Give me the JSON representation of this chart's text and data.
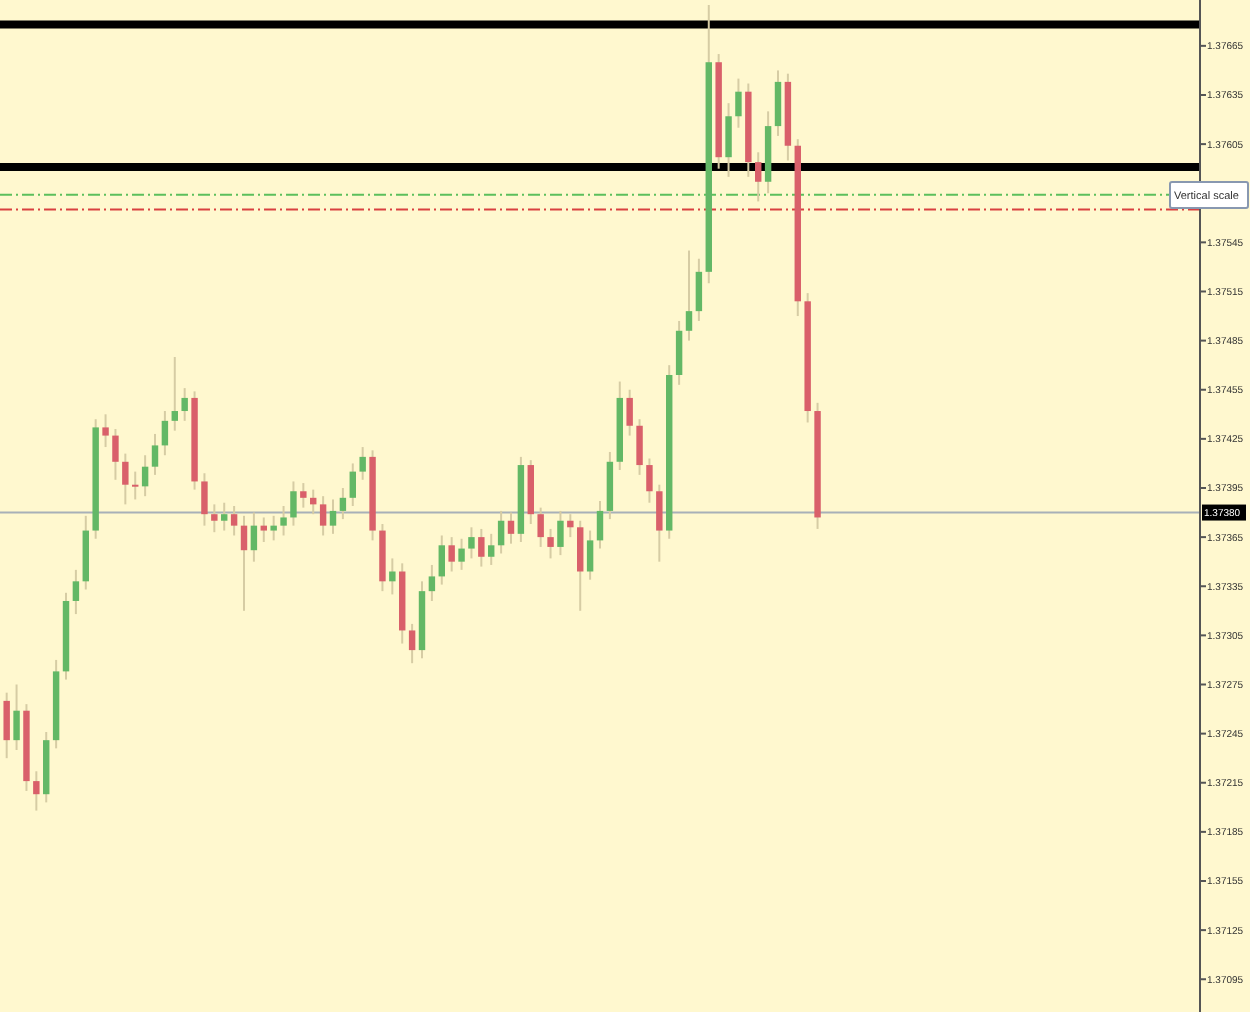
{
  "chart_data": {
    "type": "candlestick",
    "categories": [
      null,
      null,
      null,
      null,
      null,
      null,
      null,
      null,
      null,
      null,
      null,
      null,
      null,
      null,
      null,
      null,
      null,
      null,
      null,
      null,
      null,
      null,
      null,
      null,
      null,
      null,
      null,
      null,
      null,
      null,
      null,
      null,
      null,
      null,
      null,
      null,
      null,
      null,
      null,
      null,
      null,
      null,
      null,
      null,
      null,
      null,
      null,
      null,
      null,
      null,
      null,
      null,
      null,
      null,
      null,
      null,
      null,
      null,
      null,
      null,
      null,
      null,
      null,
      null,
      null,
      null,
      null,
      null,
      null,
      null,
      null,
      null,
      null,
      null,
      null,
      null,
      null,
      null,
      null,
      null,
      null,
      null,
      null,
      null,
      null,
      null,
      null,
      null,
      null,
      null,
      null,
      null,
      null,
      null,
      null,
      null,
      null,
      null,
      null,
      null,
      null,
      null,
      null,
      null,
      null,
      null,
      null,
      null,
      null,
      null,
      null,
      null,
      null,
      null,
      null,
      null,
      null,
      null,
      null,
      null,
      null
    ],
    "ohlc": [
      [
        1.37265,
        1.3727,
        1.3723,
        1.37241
      ],
      [
        1.37241,
        1.37275,
        1.37235,
        1.37259
      ],
      [
        1.37259,
        1.37263,
        1.3721,
        1.37216
      ],
      [
        1.37216,
        1.37222,
        1.37198,
        1.37208
      ],
      [
        1.37208,
        1.37246,
        1.37203,
        1.37241
      ],
      [
        1.37241,
        1.3729,
        1.37236,
        1.37283
      ],
      [
        1.37283,
        1.37331,
        1.37278,
        1.37326
      ],
      [
        1.37326,
        1.37345,
        1.37318,
        1.37338
      ],
      [
        1.37338,
        1.37378,
        1.37333,
        1.37369
      ],
      [
        1.37369,
        1.37437,
        1.37364,
        1.37432
      ],
      [
        1.37432,
        1.3744,
        1.3742,
        1.37427
      ],
      [
        1.37427,
        1.37431,
        1.374,
        1.37411
      ],
      [
        1.37411,
        1.37416,
        1.37385,
        1.37397
      ],
      [
        1.37397,
        1.37405,
        1.37388,
        1.37396
      ],
      [
        1.37396,
        1.37415,
        1.3739,
        1.37408
      ],
      [
        1.37408,
        1.37428,
        1.37403,
        1.37421
      ],
      [
        1.37421,
        1.37442,
        1.37415,
        1.37436
      ],
      [
        1.37436,
        1.37475,
        1.3743,
        1.37442
      ],
      [
        1.37442,
        1.37456,
        1.37436,
        1.3745
      ],
      [
        1.3745,
        1.37454,
        1.37394,
        1.37399
      ],
      [
        1.37399,
        1.37404,
        1.37372,
        1.37379
      ],
      [
        1.37379,
        1.37385,
        1.37368,
        1.37375
      ],
      [
        1.37375,
        1.37386,
        1.37369,
        1.37379
      ],
      [
        1.37379,
        1.37384,
        1.37366,
        1.37372
      ],
      [
        1.37372,
        1.37378,
        1.3732,
        1.37357
      ],
      [
        1.37357,
        1.3738,
        1.3735,
        1.37372
      ],
      [
        1.37372,
        1.37377,
        1.37362,
        1.37369
      ],
      [
        1.37369,
        1.37378,
        1.37363,
        1.37372
      ],
      [
        1.37372,
        1.37384,
        1.37366,
        1.37377
      ],
      [
        1.37377,
        1.37399,
        1.37372,
        1.37393
      ],
      [
        1.37393,
        1.37398,
        1.37383,
        1.37389
      ],
      [
        1.37389,
        1.37394,
        1.37379,
        1.37385
      ],
      [
        1.37385,
        1.3739,
        1.37366,
        1.37372
      ],
      [
        1.37372,
        1.37388,
        1.37367,
        1.37381
      ],
      [
        1.37381,
        1.37395,
        1.37376,
        1.37389
      ],
      [
        1.37389,
        1.3741,
        1.37384,
        1.37405
      ],
      [
        1.37405,
        1.3742,
        1.374,
        1.37414
      ],
      [
        1.37414,
        1.37418,
        1.37363,
        1.37369
      ],
      [
        1.37369,
        1.37373,
        1.37332,
        1.37338
      ],
      [
        1.37338,
        1.37352,
        1.3733,
        1.37344
      ],
      [
        1.37344,
        1.37349,
        1.373,
        1.37308
      ],
      [
        1.37308,
        1.37312,
        1.37288,
        1.37296
      ],
      [
        1.37296,
        1.37338,
        1.37291,
        1.37332
      ],
      [
        1.37332,
        1.37348,
        1.37326,
        1.37341
      ],
      [
        1.37341,
        1.37366,
        1.37336,
        1.3736
      ],
      [
        1.3736,
        1.37365,
        1.37344,
        1.3735
      ],
      [
        1.3735,
        1.37364,
        1.37345,
        1.37358
      ],
      [
        1.37358,
        1.37371,
        1.37352,
        1.37365
      ],
      [
        1.37365,
        1.3737,
        1.37347,
        1.37353
      ],
      [
        1.37353,
        1.37367,
        1.37348,
        1.3736
      ],
      [
        1.3736,
        1.37381,
        1.37355,
        1.37375
      ],
      [
        1.37375,
        1.3738,
        1.37361,
        1.37367
      ],
      [
        1.37367,
        1.37414,
        1.37362,
        1.37409
      ],
      [
        1.37409,
        1.37412,
        1.37373,
        1.37379
      ],
      [
        1.37379,
        1.37383,
        1.37359,
        1.37365
      ],
      [
        1.37365,
        1.3737,
        1.37352,
        1.37359
      ],
      [
        1.37359,
        1.37381,
        1.37354,
        1.37375
      ],
      [
        1.37375,
        1.37379,
        1.37365,
        1.37371
      ],
      [
        1.37371,
        1.37375,
        1.3732,
        1.37344
      ],
      [
        1.37344,
        1.37369,
        1.37339,
        1.37363
      ],
      [
        1.37363,
        1.37387,
        1.37358,
        1.37381
      ],
      [
        1.37381,
        1.37417,
        1.37376,
        1.37411
      ],
      [
        1.37411,
        1.3746,
        1.37406,
        1.3745
      ],
      [
        1.3745,
        1.37455,
        1.37427,
        1.37433
      ],
      [
        1.37433,
        1.37437,
        1.37403,
        1.37409
      ],
      [
        1.37409,
        1.37413,
        1.37386,
        1.37393
      ],
      [
        1.37393,
        1.37397,
        1.3735,
        1.37369
      ],
      [
        1.37369,
        1.3747,
        1.37364,
        1.37464
      ],
      [
        1.37464,
        1.37497,
        1.37458,
        1.37491
      ],
      [
        1.37491,
        1.3754,
        1.37485,
        1.37503
      ],
      [
        1.37503,
        1.37535,
        1.37497,
        1.37527
      ],
      [
        1.37527,
        1.3769,
        1.3752,
        1.37655
      ],
      [
        1.37655,
        1.3766,
        1.3759,
        1.37597
      ],
      [
        1.37597,
        1.3763,
        1.37585,
        1.37622
      ],
      [
        1.37622,
        1.37645,
        1.37615,
        1.37637
      ],
      [
        1.37637,
        1.37642,
        1.37585,
        1.37594
      ],
      [
        1.37594,
        1.376,
        1.3757,
        1.37582
      ],
      [
        1.37582,
        1.37625,
        1.37575,
        1.37616
      ],
      [
        1.37616,
        1.3765,
        1.3761,
        1.37643
      ],
      [
        1.37643,
        1.37648,
        1.37595,
        1.37604
      ],
      [
        1.37604,
        1.37608,
        1.375,
        1.37509
      ],
      [
        1.37509,
        1.37514,
        1.37435,
        1.37442
      ],
      [
        1.37442,
        1.37447,
        1.3737,
        1.37377
      ],
      null,
      null,
      null,
      null,
      null,
      null,
      null,
      null,
      null,
      null,
      null,
      null,
      null,
      null,
      null,
      null,
      null,
      null,
      null,
      null,
      null,
      null,
      null,
      null,
      null,
      null,
      null,
      null,
      null,
      null,
      null,
      null,
      null,
      null,
      null,
      null,
      null,
      null
    ],
    "ylim": [
      1.37075,
      1.37693
    ],
    "yticks": [
      1.37665,
      1.37635,
      1.37605,
      {
        "value": 1.37575,
        "label": null
      },
      1.37545,
      1.37515,
      1.37485,
      1.37455,
      1.37425,
      1.37395,
      1.37365,
      1.37335,
      1.37305,
      1.37275,
      1.37245,
      1.37215,
      1.37185,
      1.37155,
      1.37125,
      1.37095
    ],
    "tick_labels": "y",
    "grid": false,
    "ref_lines": [
      {
        "axis": "y",
        "value": 1.3738,
        "label": "1.37380",
        "color": "#a8b0b8",
        "line_style": "solid"
      },
      {
        "axis": "y",
        "value": 1.37678,
        "color": "#000000",
        "line_style": "solid"
      },
      {
        "axis": "y",
        "value": 1.37591,
        "color": "#000000",
        "line_style": "solid"
      },
      {
        "axis": "y",
        "value": 1.37574,
        "color": "#5cbf5c",
        "line_style": "dashed"
      },
      {
        "axis": "y",
        "value": 1.37565,
        "color": "#d94040",
        "line_style": "dashed"
      }
    ],
    "annotations": [
      "Vertical scale"
    ]
  }
}
